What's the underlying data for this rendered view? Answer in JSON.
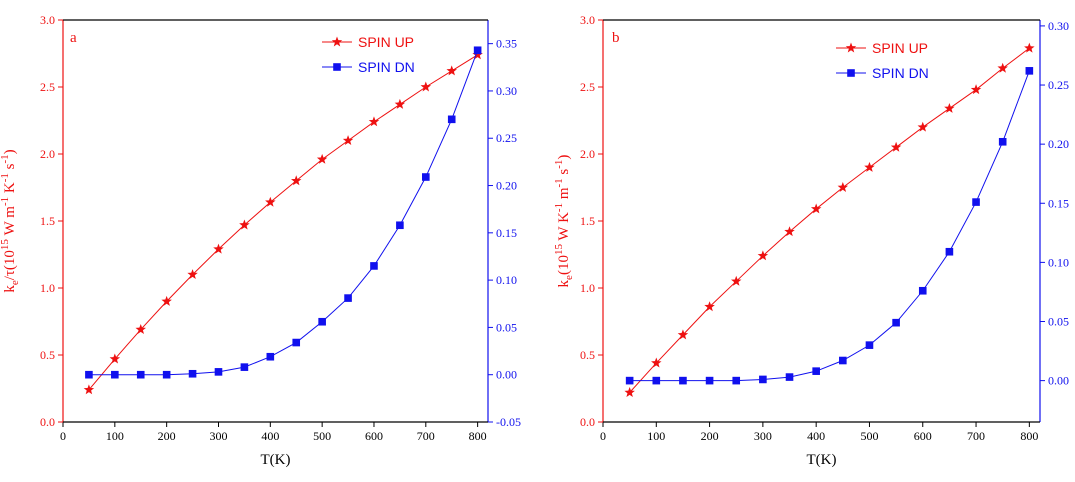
{
  "colors": {
    "spin_up": "#ee1111",
    "spin_dn": "#1010ee",
    "axis": "#000000"
  },
  "chart_data": [
    {
      "type": "line",
      "panel_label": "a",
      "xlabel": "T(K)",
      "ylabel_left": "k_e/τ(10^15 W m^-1 K^-1 s^-1)",
      "ylabel_right": "",
      "xlim": [
        0,
        820
      ],
      "ylim_left": [
        0.0,
        3.0
      ],
      "ylim_right": [
        -0.05,
        0.375
      ],
      "xticks": [
        0,
        100,
        200,
        300,
        400,
        500,
        600,
        700,
        800
      ],
      "yticks_left": [
        0.0,
        0.5,
        1.0,
        1.5,
        2.0,
        2.5,
        3.0
      ],
      "yticks_right": [
        -0.05,
        0.0,
        0.05,
        0.1,
        0.15,
        0.2,
        0.25,
        0.3,
        0.35
      ],
      "legend_position": "top-right",
      "grid": false,
      "x": [
        50,
        100,
        150,
        200,
        250,
        300,
        350,
        400,
        450,
        500,
        550,
        600,
        650,
        700,
        750,
        800
      ],
      "series": [
        {
          "name": "SPIN UP",
          "axis": "left",
          "marker": "star",
          "values": [
            0.24,
            0.47,
            0.69,
            0.9,
            1.1,
            1.29,
            1.47,
            1.64,
            1.8,
            1.96,
            2.1,
            2.24,
            2.37,
            2.5,
            2.62,
            2.74
          ]
        },
        {
          "name": "SPIN DN",
          "axis": "right",
          "marker": "square",
          "values": [
            0.0,
            0.0,
            0.0,
            0.0,
            0.001,
            0.003,
            0.008,
            0.019,
            0.034,
            0.056,
            0.081,
            0.115,
            0.158,
            0.209,
            0.27,
            0.343
          ]
        }
      ]
    },
    {
      "type": "line",
      "panel_label": "b",
      "xlabel": "T(K)",
      "ylabel_left": "k_e(10^15 W K^-1 m^-1 s^-1)",
      "ylabel_right": "",
      "xlim": [
        0,
        820
      ],
      "ylim_left": [
        0.0,
        3.0
      ],
      "ylim_right": [
        -0.035,
        0.305
      ],
      "xticks": [
        0,
        100,
        200,
        300,
        400,
        500,
        600,
        700,
        800
      ],
      "yticks_left": [
        0.0,
        0.5,
        1.0,
        1.5,
        2.0,
        2.5,
        3.0
      ],
      "yticks_right": [
        0.0,
        0.05,
        0.1,
        0.15,
        0.2,
        0.25,
        0.3
      ],
      "legend_position": "top-right",
      "grid": false,
      "x": [
        50,
        100,
        150,
        200,
        250,
        300,
        350,
        400,
        450,
        500,
        550,
        600,
        650,
        700,
        750,
        800
      ],
      "series": [
        {
          "name": "SPIN UP",
          "axis": "left",
          "marker": "star",
          "values": [
            0.22,
            0.44,
            0.65,
            0.86,
            1.05,
            1.24,
            1.42,
            1.59,
            1.75,
            1.9,
            2.05,
            2.2,
            2.34,
            2.48,
            2.64,
            2.79
          ]
        },
        {
          "name": "SPIN DN",
          "axis": "right",
          "marker": "square",
          "values": [
            0.0,
            0.0,
            0.0,
            0.0,
            0.0,
            0.001,
            0.003,
            0.008,
            0.017,
            0.03,
            0.049,
            0.076,
            0.109,
            0.151,
            0.202,
            0.262
          ]
        }
      ]
    }
  ]
}
